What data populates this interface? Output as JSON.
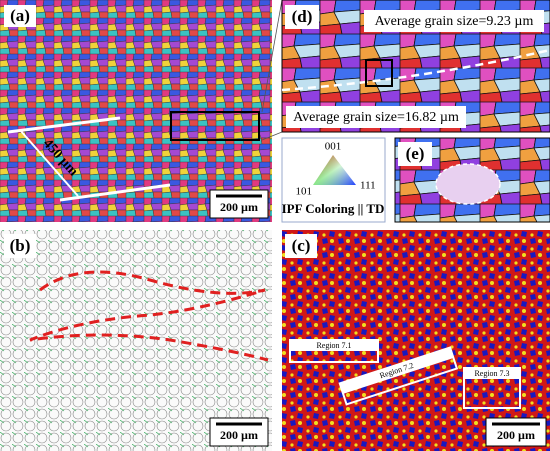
{
  "panels": {
    "a": {
      "label": "(a)",
      "measure": "450 µm",
      "scale_bar": "200 µm"
    },
    "d": {
      "label": "(d)",
      "annotation_top": "Average grain size=9.23 µm",
      "annotation_bottom": "Average grain size=16.82 µm"
    },
    "legend": {
      "corner_top": "001",
      "corner_left": "101",
      "corner_right": "111",
      "caption": "IPF Coloring || TD"
    },
    "e": {
      "label": "(e)"
    },
    "b": {
      "label": "(b)",
      "scale_bar": "200 µm"
    },
    "c": {
      "label": "(c)",
      "regions": [
        "Region 7.1",
        "Region 7.2",
        "Region 7.3"
      ],
      "scale_bar": "200 µm"
    }
  }
}
